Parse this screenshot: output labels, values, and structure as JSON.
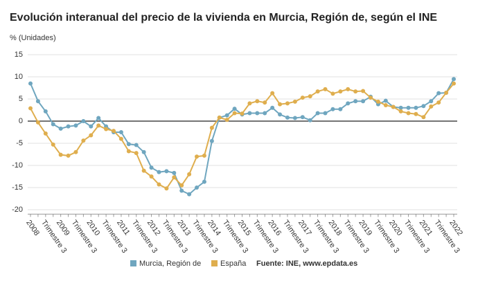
{
  "chart_data": {
    "type": "line",
    "title": "Evolución interanual del precio de la vivienda en Murcia, Región de, según el INE",
    "y_label": "% (Unidades)",
    "source": "Fuente: INE, www.epdata.es",
    "categories": [
      "2008",
      null,
      "Trimestre 3",
      null,
      "2009",
      null,
      "Trimestre 3",
      null,
      "2010",
      null,
      "Trimestre 3",
      null,
      "2011",
      null,
      "Trimestre 3",
      null,
      "2012",
      null,
      "Trimestre 3",
      null,
      "2013",
      null,
      "Trimestre 3",
      null,
      "2014",
      null,
      "Trimestre 3",
      null,
      "2015",
      null,
      "Trimestre 3",
      null,
      "2016",
      null,
      "Trimestre 3",
      null,
      "2017",
      null,
      "Trimestre 3",
      null,
      "2018",
      null,
      "Trimestre 3",
      null,
      "2019",
      null,
      "Trimestre 3",
      null,
      "2020",
      null,
      "Trimestre 3",
      null,
      "2021",
      null,
      "Trimestre 3",
      null,
      "2022"
    ],
    "series": [
      {
        "name": "Murcia, Región de",
        "color": "#6fa6bf",
        "values": [
          8.5,
          4.5,
          2.2,
          -0.7,
          -1.7,
          -1.2,
          -1.0,
          0.0,
          -1.2,
          0.7,
          -1.2,
          -2.5,
          -2.5,
          -5.2,
          -5.4,
          -7.0,
          -10.5,
          -11.5,
          -11.3,
          -11.7,
          -15.7,
          -16.5,
          -15.0,
          -13.7,
          -4.5,
          0.8,
          1.3,
          2.8,
          1.5,
          1.8,
          1.8,
          1.8,
          3.0,
          1.5,
          0.8,
          0.7,
          0.9,
          0.2,
          1.8,
          1.8,
          2.7,
          2.7,
          4.0,
          4.5,
          4.5,
          5.5,
          3.8,
          4.6,
          3.2,
          3.0,
          3.0,
          3.0,
          3.4,
          4.5,
          6.3,
          6.4,
          9.5
        ]
      },
      {
        "name": "España",
        "color": "#dfae4e",
        "values": [
          2.9,
          -0.3,
          -2.8,
          -5.3,
          -7.6,
          -7.8,
          -7.0,
          -4.4,
          -3.2,
          -1.0,
          -1.8,
          -2.2,
          -4.0,
          -6.8,
          -7.2,
          -11.2,
          -12.5,
          -14.3,
          -15.2,
          -12.7,
          -14.5,
          -12.0,
          -8.0,
          -7.8,
          -1.5,
          0.8,
          0.3,
          1.8,
          1.7,
          4.0,
          4.5,
          4.2,
          6.3,
          3.8,
          4.0,
          4.4,
          5.3,
          5.6,
          6.7,
          7.2,
          6.2,
          6.7,
          7.2,
          6.7,
          6.8,
          5.3,
          4.4,
          3.6,
          3.2,
          2.2,
          1.8,
          1.6,
          0.9,
          3.3,
          4.2,
          6.4,
          8.5
        ]
      }
    ],
    "ylim": [
      -21,
      16
    ],
    "yticks": [
      -20,
      -15,
      -10,
      -5,
      0,
      5,
      10,
      15
    ],
    "grid": true
  }
}
